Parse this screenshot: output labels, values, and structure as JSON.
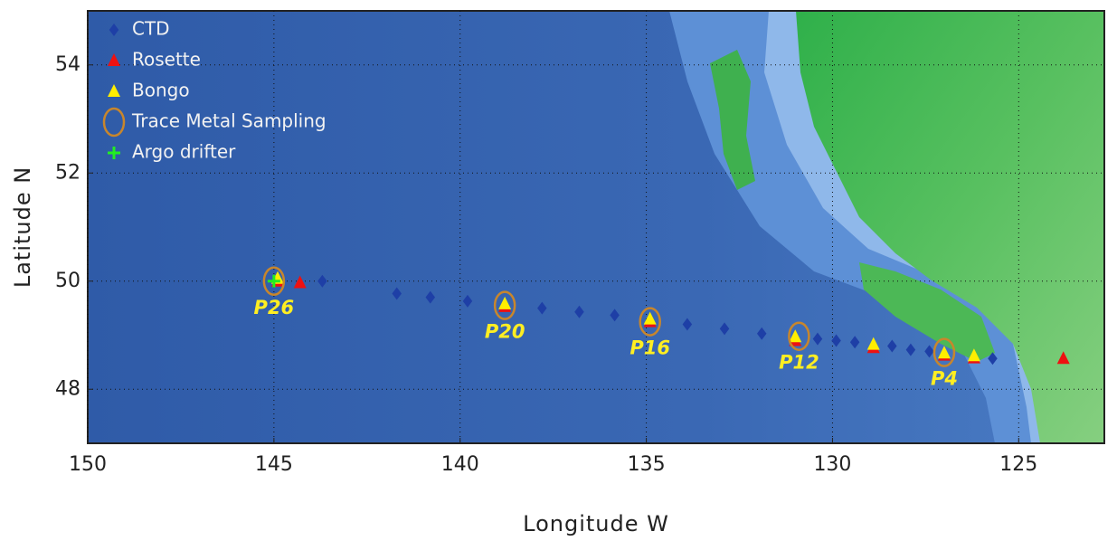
{
  "chart_data": {
    "type": "scatter",
    "xlabel": "Longitude  W",
    "ylabel": "Latitude  N",
    "xlim": [
      150,
      122.7
    ],
    "ylim": [
      47,
      55
    ],
    "xticks": [
      150,
      145,
      140,
      135,
      130,
      125
    ],
    "yticks": [
      48,
      50,
      52,
      54
    ],
    "grid": true,
    "legend": "upper left",
    "series": [
      {
        "name": "CTD",
        "color": "#1e3fa6",
        "marker": "diamond",
        "x": [
          143.7,
          141.7,
          140.8,
          139.8,
          137.8,
          136.8,
          135.85,
          133.9,
          132.9,
          131.9,
          130.4,
          129.9,
          129.4,
          128.4,
          127.9,
          127.4,
          125.7
        ],
        "y": [
          50.0,
          49.77,
          49.7,
          49.63,
          49.5,
          49.43,
          49.37,
          49.2,
          49.12,
          49.03,
          48.93,
          48.9,
          48.87,
          48.8,
          48.73,
          48.7,
          48.57
        ]
      },
      {
        "name": "Rosette",
        "color": "#ee1111",
        "marker": "triangle",
        "x": [
          144.9,
          144.3,
          138.8,
          134.9,
          131.0,
          128.9,
          127.0,
          126.2,
          123.8
        ],
        "y": [
          50.0,
          49.97,
          49.53,
          49.25,
          48.9,
          48.77,
          48.63,
          48.58,
          48.57
        ]
      },
      {
        "name": "Bongo",
        "color": "#ffee00",
        "marker": "triangle",
        "x": [
          144.9,
          138.8,
          134.9,
          131.0,
          128.9,
          127.0,
          126.2
        ],
        "y": [
          50.05,
          49.58,
          49.3,
          48.97,
          48.83,
          48.67,
          48.62
        ]
      },
      {
        "name": "Trace Metal Sampling",
        "color": "#c8862c",
        "marker": "circle",
        "x": [
          145.0,
          138.8,
          134.9,
          130.9,
          127.0
        ],
        "y": [
          50.0,
          49.55,
          49.25,
          48.98,
          48.68
        ],
        "labels": [
          "P26",
          "P20",
          "P16",
          "P12",
          "P4"
        ]
      },
      {
        "name": "Argo drifter",
        "color": "#22ee22",
        "marker": "plus",
        "x": [
          145.0
        ],
        "y": [
          50.0
        ]
      }
    ]
  }
}
